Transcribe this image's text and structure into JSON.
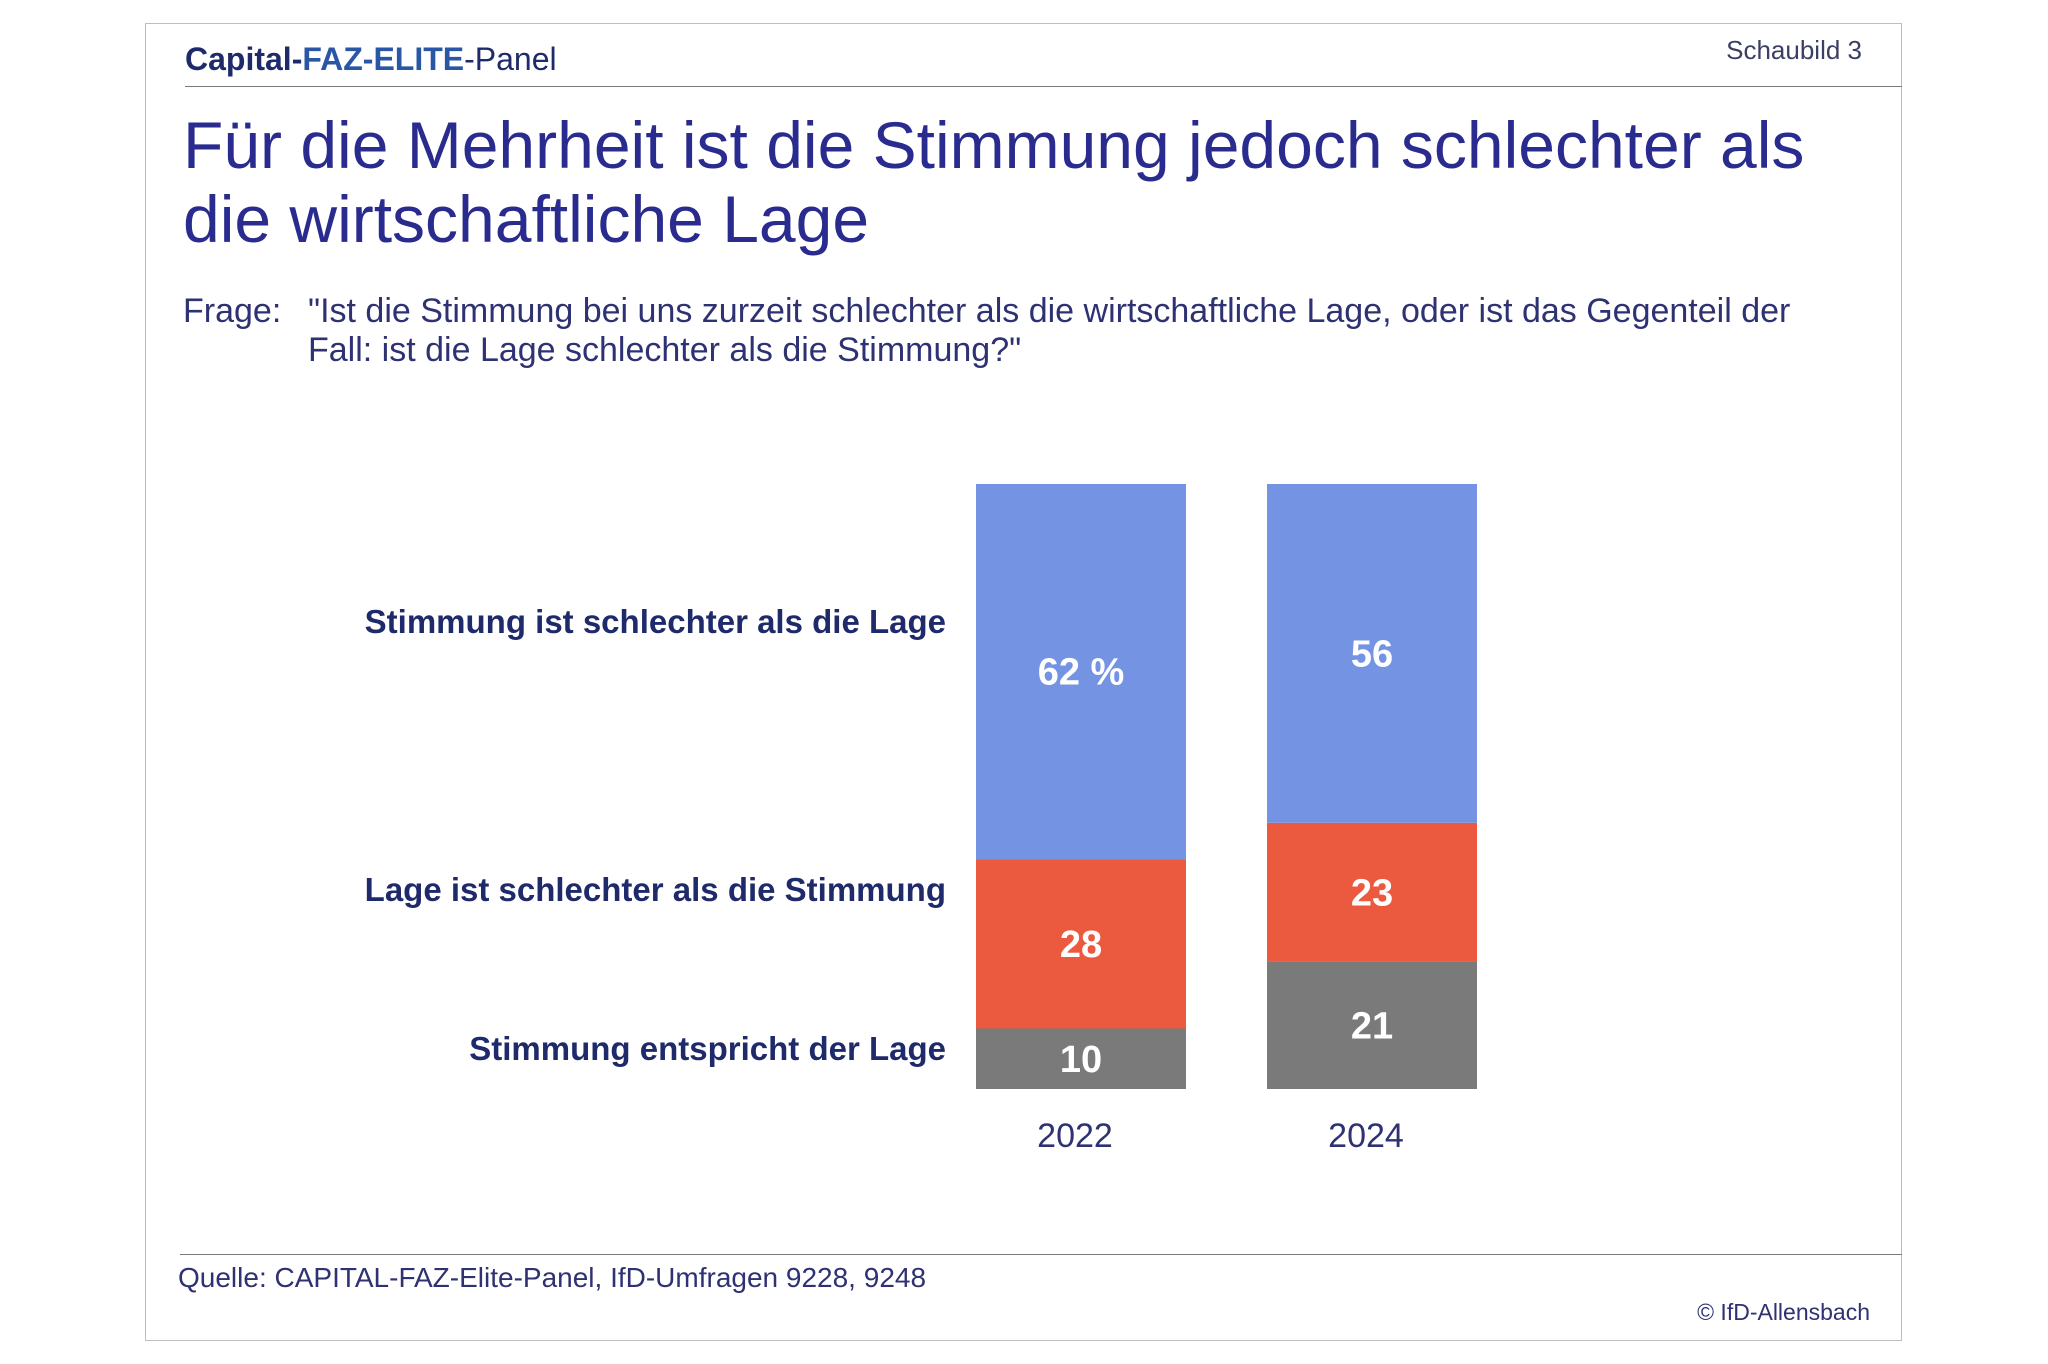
{
  "header": {
    "brand_part1": "Capital-",
    "brand_part2": "FAZ-ELITE",
    "brand_part3": "-Panel",
    "chart_number": "Schaubild 3"
  },
  "title": "Für die Mehrheit ist die Stimmung jedoch schlechter als die wirtschaftliche Lage",
  "question": {
    "label": "Frage:",
    "text": "\"Ist die Stimmung bei uns zurzeit schlechter als die wirtschaftliche Lage, oder ist das Gegenteil der Fall: ist die Lage schlechter als die Stimmung?\""
  },
  "footer": {
    "source": "Quelle: CAPITAL-FAZ-Elite-Panel, IfD-Umfragen 9228, 9248",
    "copyright": "© IfD-Allensbach"
  },
  "colors": {
    "worse_mood": "#7494e3",
    "worse_situation": "#eb5a3e",
    "equal": "#7a7a7a",
    "label_text": "#1f2a6b"
  },
  "chart_data": {
    "type": "bar",
    "stacked": true,
    "categories": [
      "2022",
      "2024"
    ],
    "series": [
      {
        "name": "Stimmung entspricht der Lage",
        "values": [
          10,
          21
        ],
        "labels": [
          "10",
          "21"
        ]
      },
      {
        "name": "Lage ist schlechter als die Stimmung",
        "values": [
          28,
          23
        ],
        "labels": [
          "28",
          "23"
        ]
      },
      {
        "name": "Stimmung ist schlechter als die Lage",
        "values": [
          62,
          56
        ],
        "labels": [
          "62 %",
          "56"
        ]
      }
    ],
    "ylim": [
      0,
      100
    ],
    "grid": false,
    "legend": "left"
  }
}
